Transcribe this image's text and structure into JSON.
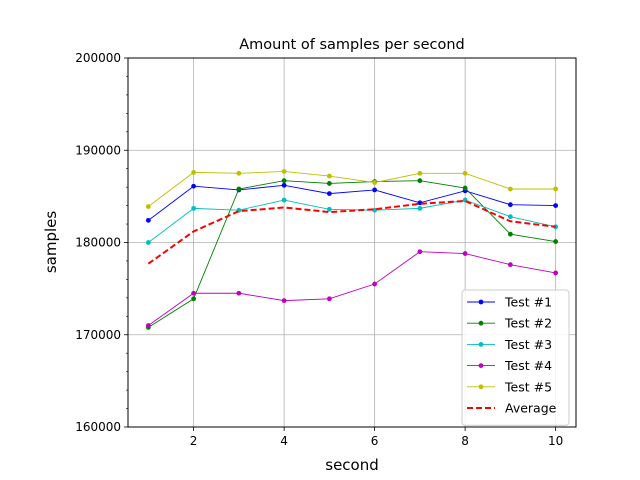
{
  "chart_data": {
    "type": "line",
    "title": "Amount of samples per second",
    "xlabel": "second",
    "ylabel": "samples",
    "xlim": [
      0.55,
      10.45
    ],
    "ylim": [
      160000,
      200000
    ],
    "xticks": [
      2,
      4,
      6,
      8,
      10
    ],
    "xtick_labels": [
      "2",
      "4",
      "6",
      "8",
      "10"
    ],
    "yticks": [
      160000,
      170000,
      180000,
      190000,
      200000
    ],
    "ytick_labels": [
      "160000",
      "170000",
      "180000",
      "190000",
      "200000"
    ],
    "y_minor_step": 2000,
    "grid": true,
    "legend_position": "lower right",
    "x": [
      1,
      2,
      3,
      4,
      5,
      6,
      7,
      8,
      9,
      10
    ],
    "series": [
      {
        "name": "Test #1",
        "color": "#0000ff",
        "style": "solid-marker",
        "values": [
          182400,
          186100,
          185700,
          186200,
          185300,
          185700,
          184300,
          185600,
          184100,
          184000
        ]
      },
      {
        "name": "Test #2",
        "color": "#008000",
        "style": "solid-marker",
        "values": [
          170800,
          173900,
          185800,
          186700,
          186400,
          186600,
          186700,
          185900,
          180900,
          180100
        ]
      },
      {
        "name": "Test #3",
        "color": "#00bfbf",
        "style": "solid-marker",
        "values": [
          180000,
          183700,
          183500,
          184600,
          183600,
          183500,
          183700,
          184600,
          182800,
          181700
        ]
      },
      {
        "name": "Test #4",
        "color": "#bf00bf",
        "style": "solid-marker",
        "values": [
          171000,
          174500,
          174500,
          173700,
          173900,
          175500,
          179000,
          178800,
          177600,
          176700
        ]
      },
      {
        "name": "Test #5",
        "color": "#bfbf00",
        "style": "solid-marker",
        "values": [
          183900,
          187600,
          187500,
          187700,
          187200,
          186500,
          187500,
          187500,
          185800,
          185800
        ]
      },
      {
        "name": "Average",
        "color": "#ff0000",
        "style": "dashed",
        "values": [
          177700,
          181200,
          183400,
          183800,
          183300,
          183600,
          184200,
          184500,
          182300,
          181700
        ]
      }
    ]
  }
}
